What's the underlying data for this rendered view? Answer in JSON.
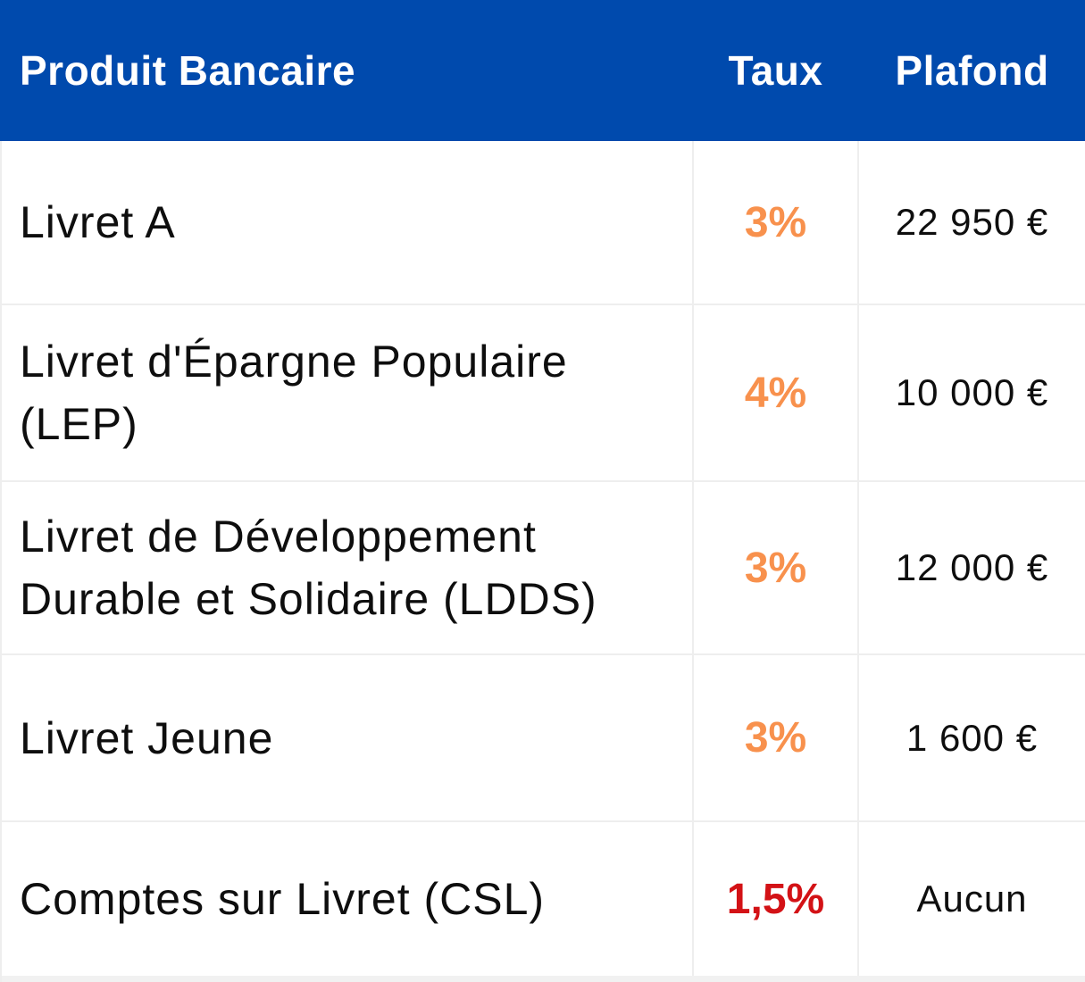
{
  "colors": {
    "header_bg": "#004AAD",
    "header_text": "#FFFFFF",
    "text": "#0E0E0E",
    "border": "#EEEEEE",
    "taux_orange": "#F8914D",
    "taux_red": "#D31216"
  },
  "table": {
    "headers": [
      "Produit Bancaire",
      "Taux",
      "Plafond"
    ],
    "rows": [
      {
        "product": "Livret A",
        "taux": "3%",
        "taux_color": "#F8914D",
        "plafond": "22 950 €"
      },
      {
        "product": "Livret d'Épargne Populaire (LEP)",
        "taux": "4%",
        "taux_color": "#F8914D",
        "plafond": "10 000 €"
      },
      {
        "product": "Livret de Développement Durable et Solidaire (LDDS)",
        "taux": "3%",
        "taux_color": "#F8914D",
        "plafond": "12 000 €"
      },
      {
        "product": "Livret Jeune",
        "taux": "3%",
        "taux_color": "#F8914D",
        "plafond": "1 600 €"
      },
      {
        "product": "Comptes sur Livret (CSL)",
        "taux": "1,5%",
        "taux_color": "#D31216",
        "plafond": "Aucun"
      }
    ]
  },
  "chart_data": {
    "type": "table",
    "title": "",
    "columns": [
      "Produit Bancaire",
      "Taux",
      "Plafond"
    ],
    "rows": [
      [
        "Livret A",
        "3%",
        "22 950 €"
      ],
      [
        "Livret d'Épargne Populaire (LEP)",
        "4%",
        "10 000 €"
      ],
      [
        "Livret de Développement Durable et Solidaire (LDDS)",
        "3%",
        "12 000 €"
      ],
      [
        "Livret Jeune",
        "3%",
        "1 600 €"
      ],
      [
        "Comptes sur Livret (CSL)",
        "1,5%",
        "Aucun"
      ]
    ]
  }
}
